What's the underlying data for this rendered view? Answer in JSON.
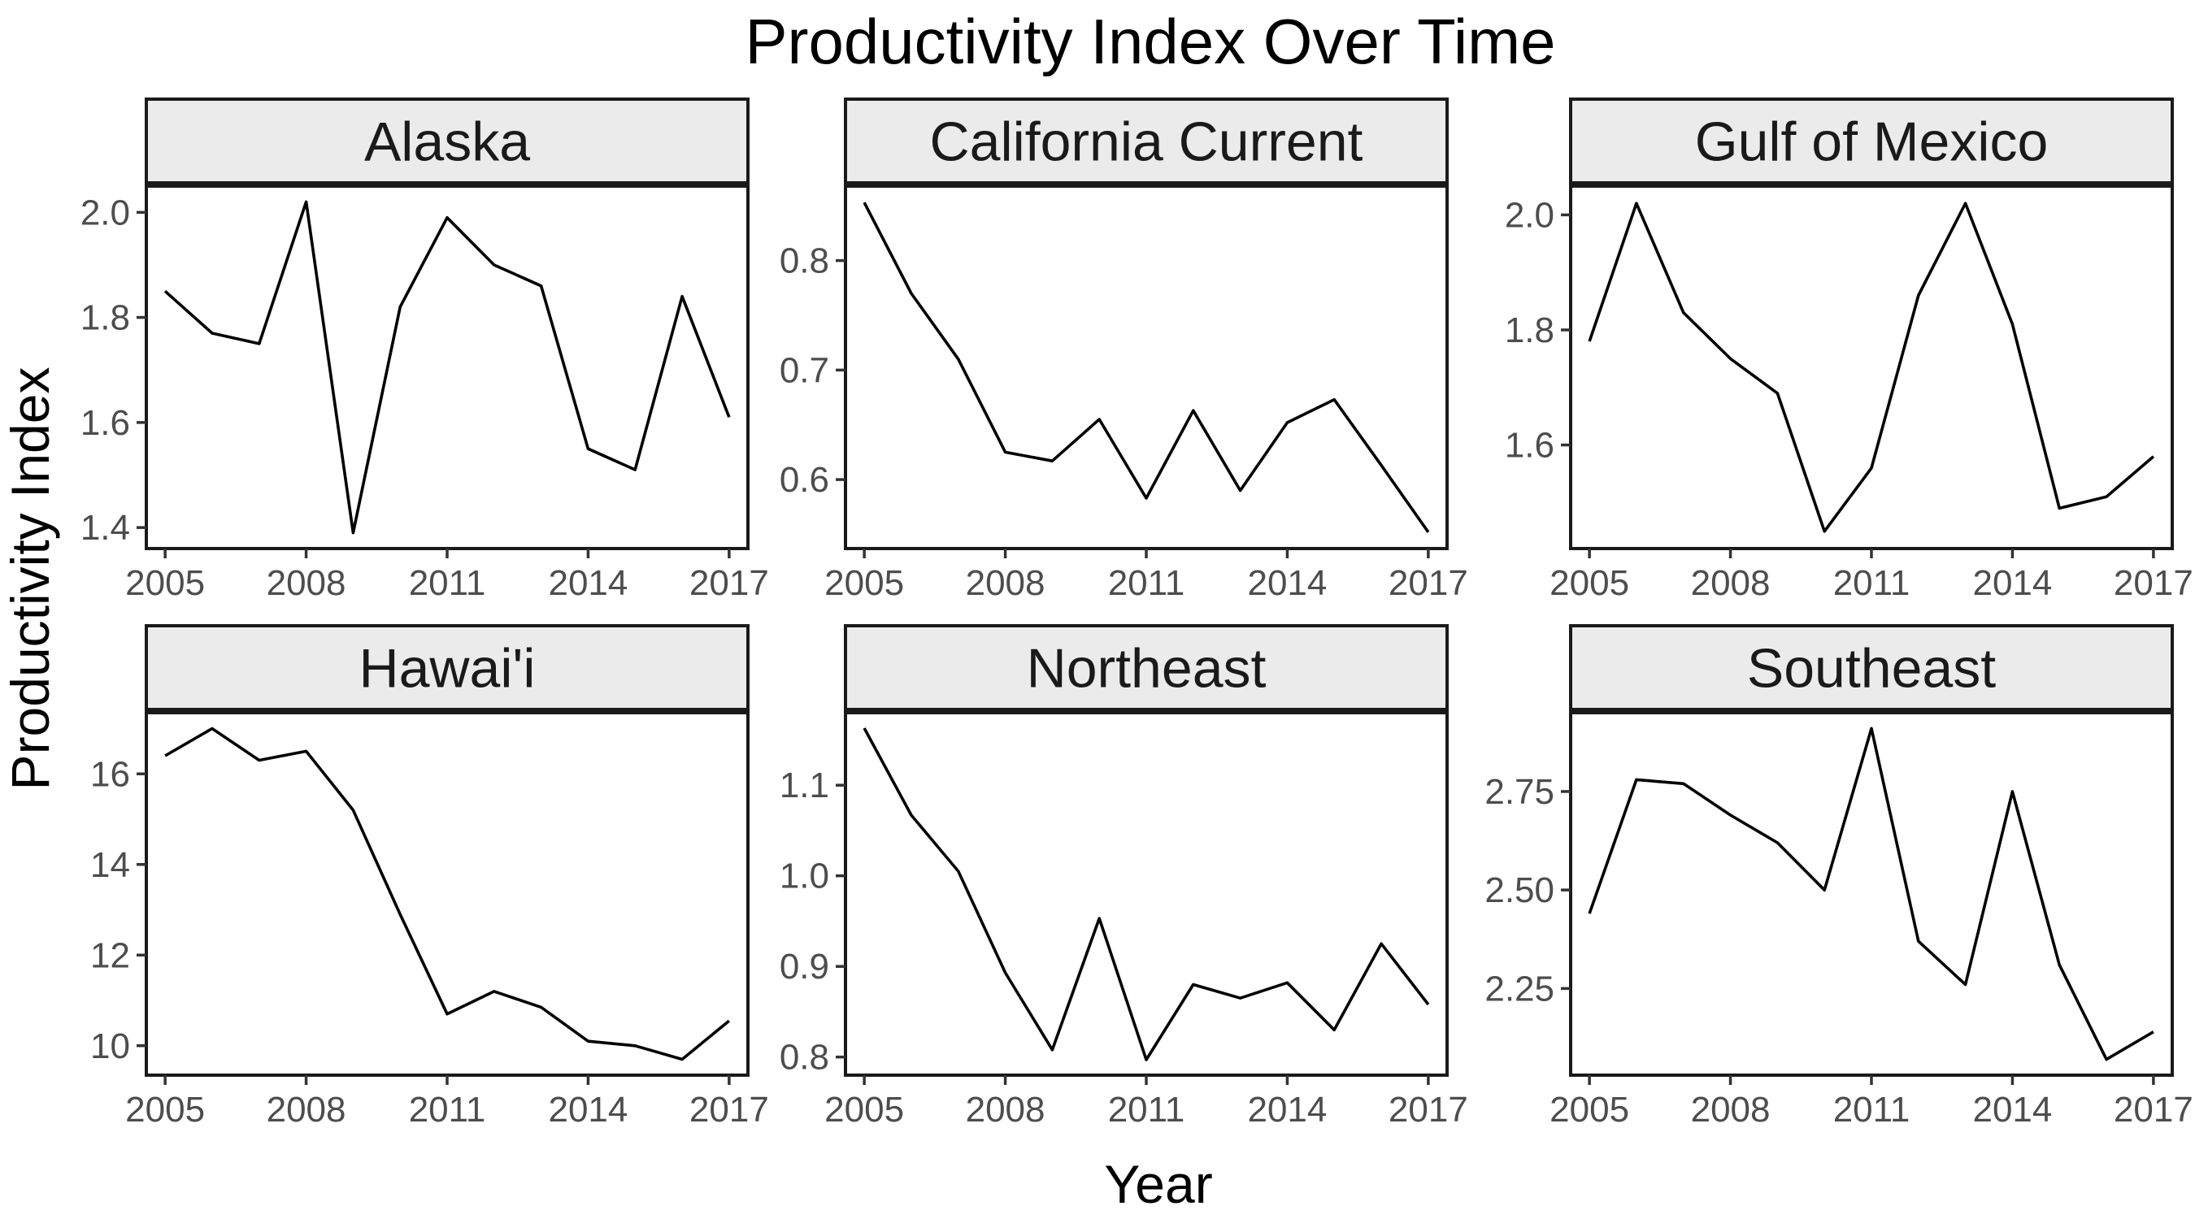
{
  "chart_data": {
    "type": "line",
    "title": "Productivity Index Over Time",
    "xlabel": "Year",
    "ylabel": "Productivity Index",
    "grid": false,
    "legend": "none",
    "x": [
      2005,
      2006,
      2007,
      2008,
      2009,
      2010,
      2011,
      2012,
      2013,
      2014,
      2015,
      2016,
      2017
    ],
    "x_ticks": [
      2005,
      2008,
      2011,
      2014,
      2017
    ],
    "xlim": [
      2004.6,
      2017.4
    ],
    "facets": [
      {
        "name": "Alaska",
        "values": [
          1.85,
          1.77,
          1.75,
          2.02,
          1.39,
          1.82,
          1.99,
          1.9,
          1.86,
          1.55,
          1.51,
          1.84,
          1.61
        ],
        "ylim": [
          1.36,
          2.05
        ],
        "y_ticks": [
          1.4,
          1.6,
          1.8,
          2.0
        ],
        "y_tick_labels": [
          "1.4",
          "1.6",
          "1.8",
          "2.0"
        ]
      },
      {
        "name": "California Current",
        "values": [
          0.853,
          0.77,
          0.71,
          0.625,
          0.617,
          0.655,
          0.583,
          0.663,
          0.59,
          0.652,
          0.673,
          0.613,
          0.552
        ],
        "ylim": [
          0.537,
          0.868
        ],
        "y_ticks": [
          0.6,
          0.7,
          0.8
        ],
        "y_tick_labels": [
          "0.6",
          "0.7",
          "0.8"
        ]
      },
      {
        "name": "Gulf of Mexico",
        "values": [
          1.78,
          2.02,
          1.83,
          1.75,
          1.69,
          1.45,
          1.56,
          1.86,
          2.02,
          1.81,
          1.49,
          1.51,
          1.58
        ],
        "ylim": [
          1.42,
          2.05
        ],
        "y_ticks": [
          1.6,
          1.8,
          2.0
        ],
        "y_tick_labels": [
          "1.6",
          "1.8",
          "2.0"
        ]
      },
      {
        "name": "Hawai'i",
        "values": [
          16.4,
          17.0,
          16.3,
          16.5,
          15.2,
          12.9,
          10.7,
          11.2,
          10.85,
          10.1,
          10.0,
          9.7,
          10.55
        ],
        "ylim": [
          9.35,
          17.35
        ],
        "y_ticks": [
          10,
          12,
          14,
          16
        ],
        "y_tick_labels": [
          "10",
          "12",
          "14",
          "16"
        ]
      },
      {
        "name": "Northeast",
        "values": [
          1.163,
          1.067,
          1.005,
          0.893,
          0.808,
          0.953,
          0.797,
          0.88,
          0.865,
          0.882,
          0.83,
          0.925,
          0.858
        ],
        "ylim": [
          0.78,
          1.18
        ],
        "y_ticks": [
          0.8,
          0.9,
          1.0,
          1.1
        ],
        "y_tick_labels": [
          "0.8",
          "0.9",
          "1.0",
          "1.1"
        ]
      },
      {
        "name": "Southeast",
        "values": [
          2.44,
          2.78,
          2.77,
          2.69,
          2.62,
          2.5,
          2.91,
          2.37,
          2.26,
          2.75,
          2.31,
          2.07,
          2.14
        ],
        "ylim": [
          2.03,
          2.95
        ],
        "y_ticks": [
          2.25,
          2.5,
          2.75
        ],
        "y_tick_labels": [
          "2.25",
          "2.50",
          "2.75"
        ]
      }
    ]
  }
}
